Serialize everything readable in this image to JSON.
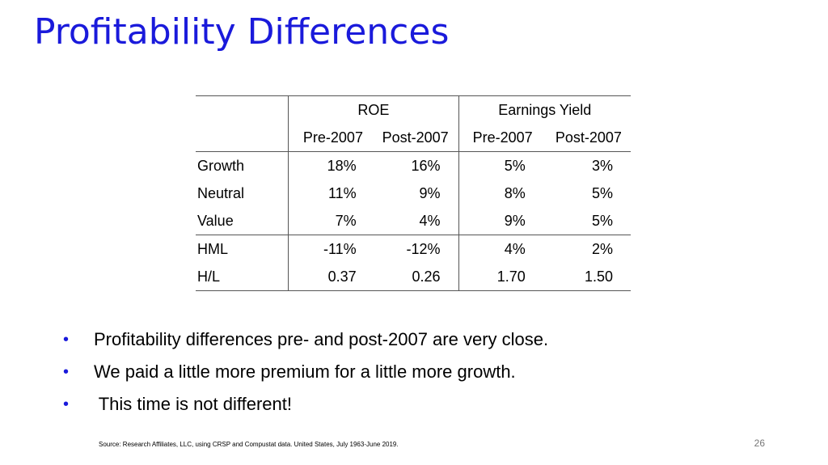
{
  "slide": {
    "title": "Profitability Differences",
    "page_number": "26",
    "source": "Source: Research Affiliates, LLC, using CRSP and Compustat data. United States, July 1963-June 2019."
  },
  "table": {
    "groups": [
      "ROE",
      "Earnings Yield"
    ],
    "subheaders": [
      "Pre-2007",
      "Post-2007",
      "Pre-2007",
      "Post-2007"
    ],
    "rows": [
      {
        "label": "Growth",
        "values": [
          "18%",
          "16%",
          "5%",
          "3%"
        ]
      },
      {
        "label": "Neutral",
        "values": [
          "11%",
          "9%",
          "8%",
          "5%"
        ]
      },
      {
        "label": "Value",
        "values": [
          "7%",
          "4%",
          "9%",
          "5%"
        ]
      },
      {
        "label": "HML",
        "values": [
          "-11%",
          "-12%",
          "4%",
          "2%"
        ]
      },
      {
        "label": "H/L",
        "values": [
          "0.37",
          "0.26",
          "1.70",
          "1.50"
        ]
      }
    ]
  },
  "bullets": [
    "Profitability differences pre- and post-2007 are very close.",
    "We paid a little more premium for a little more growth.",
    " This time is not different!"
  ],
  "colors": {
    "accent": "#1a1adb"
  }
}
